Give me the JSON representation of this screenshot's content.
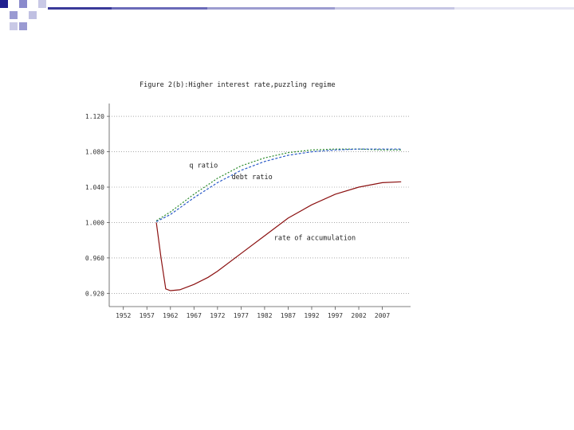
{
  "page": {
    "background": "#ffffff",
    "decor_colors": [
      "#1f1f8f",
      "#8a8acc",
      "#c9c9e6"
    ]
  },
  "chart_data": {
    "type": "line",
    "title": "Figure 2(b):Higher interest rate,puzzling regime",
    "xlabel": "",
    "ylabel": "",
    "xlim": [
      1949,
      2013
    ],
    "ylim": [
      0.905,
      1.13
    ],
    "x_ticks": [
      1952,
      1957,
      1962,
      1967,
      1972,
      1977,
      1982,
      1987,
      1992,
      1997,
      2002,
      2007
    ],
    "y_ticks": [
      0.92,
      0.96,
      1.0,
      1.04,
      1.08,
      1.12
    ],
    "y_tick_labels": [
      "0.920",
      "0.960",
      "1.000",
      "1.040",
      "1.080",
      "1.120"
    ],
    "grid": "horizontal dotted",
    "series": [
      {
        "name": "q ratio",
        "color": "#2a8a2a",
        "dash": "2,2",
        "x": [
          1959,
          1962,
          1967,
          1972,
          1977,
          1982,
          1987,
          1992,
          1997,
          2002,
          2007,
          2011
        ],
        "y": [
          1.002,
          1.012,
          1.032,
          1.05,
          1.064,
          1.073,
          1.079,
          1.082,
          1.083,
          1.083,
          1.082,
          1.082
        ]
      },
      {
        "name": "debt ratio",
        "color": "#2a5ac8",
        "dash": "3,2",
        "x": [
          1959,
          1962,
          1967,
          1972,
          1977,
          1982,
          1987,
          1992,
          1997,
          2002,
          2007,
          2011
        ],
        "y": [
          1.001,
          1.009,
          1.028,
          1.045,
          1.059,
          1.069,
          1.076,
          1.08,
          1.082,
          1.083,
          1.083,
          1.083
        ]
      },
      {
        "name": "rate of accumulation",
        "color": "#8b1010",
        "dash": "",
        "x": [
          1959,
          1960,
          1961,
          1962,
          1964,
          1967,
          1970,
          1972,
          1977,
          1982,
          1987,
          1992,
          1997,
          2002,
          2007,
          2011
        ],
        "y": [
          1.0,
          0.96,
          0.925,
          0.923,
          0.924,
          0.93,
          0.938,
          0.945,
          0.965,
          0.985,
          1.005,
          1.02,
          1.032,
          1.04,
          1.045,
          1.046
        ]
      }
    ],
    "annotations": [
      "q ratio",
      "debt ratio",
      "rate of accumulation"
    ]
  }
}
